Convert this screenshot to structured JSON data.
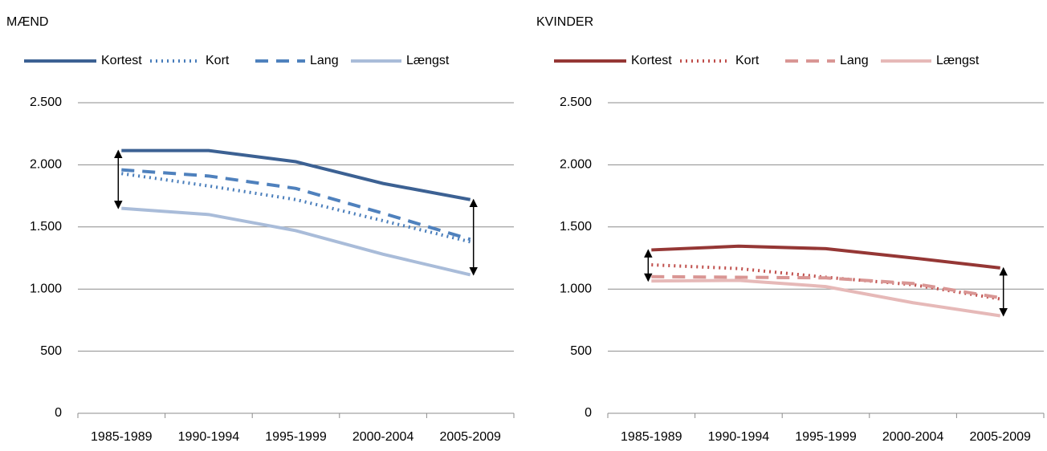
{
  "chart_data": [
    {
      "type": "line",
      "title": "MÆND",
      "categories": [
        "1985-1989",
        "1990-1994",
        "1995-1999",
        "2000-2004",
        "2005-2009"
      ],
      "series": [
        {
          "name": "Kortest",
          "color": "#3c6193",
          "style": "solid",
          "values": [
            2115,
            2115,
            2025,
            1850,
            1720
          ]
        },
        {
          "name": "Kort",
          "color": "#4a7ebb",
          "style": "dot",
          "values": [
            1930,
            1830,
            1720,
            1550,
            1380
          ]
        },
        {
          "name": "Lang",
          "color": "#4f81bd",
          "style": "dash",
          "values": [
            1960,
            1910,
            1810,
            1610,
            1400
          ]
        },
        {
          "name": "Længst",
          "color": "#a9bcd9",
          "style": "solid",
          "values": [
            1650,
            1600,
            1470,
            1280,
            1115
          ]
        }
      ],
      "ylim": [
        0,
        2500
      ],
      "yticks": [
        0,
        500,
        {
          "value": 1000,
          "label": "1.000"
        },
        {
          "value": 1500,
          "label": "1.500"
        },
        {
          "value": 2000,
          "label": "2.000"
        },
        {
          "value": 2500,
          "label": "2.500"
        }
      ],
      "grid": true,
      "legend": "top"
    },
    {
      "type": "line",
      "title": "KVINDER",
      "categories": [
        "1985-1989",
        "1990-1994",
        "1995-1999",
        "2000-2004",
        "2005-2009"
      ],
      "series": [
        {
          "name": "Kortest",
          "color": "#953735",
          "style": "solid",
          "values": [
            1315,
            1345,
            1325,
            1250,
            1170
          ]
        },
        {
          "name": "Kort",
          "color": "#c0504d",
          "style": "dot",
          "values": [
            1195,
            1165,
            1095,
            1035,
            920
          ]
        },
        {
          "name": "Lang",
          "color": "#d99694",
          "style": "dash",
          "values": [
            1100,
            1095,
            1090,
            1045,
            930
          ]
        },
        {
          "name": "Længst",
          "color": "#e6b9b8",
          "style": "solid",
          "values": [
            1065,
            1070,
            1020,
            890,
            785
          ]
        }
      ],
      "ylim": [
        0,
        2500
      ],
      "yticks": [
        0,
        500,
        {
          "value": 1000,
          "label": "1.000"
        },
        {
          "value": 1500,
          "label": "1.500"
        },
        {
          "value": 2000,
          "label": "2.000"
        },
        {
          "value": 2500,
          "label": "2.500"
        }
      ],
      "grid": true,
      "legend": "top"
    }
  ]
}
